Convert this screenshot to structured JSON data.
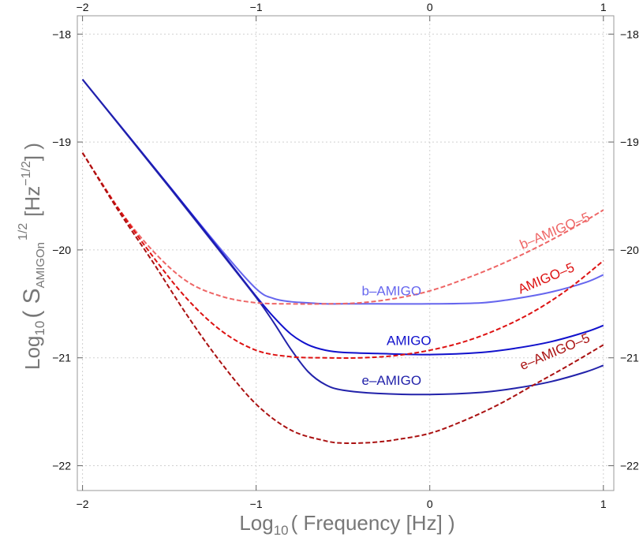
{
  "chart_data": {
    "type": "line",
    "xlabel": {
      "prefix": "Log",
      "sub": "10",
      "text": "( Frequency [Hz] )"
    },
    "ylabel": {
      "prefix": "Log",
      "sub": "10",
      "mid": "( S",
      "sub2": "AMIGOn",
      "sup": "1/2",
      "unit": "[Hz",
      "unitsup": "−1/2",
      "tail": "] )"
    },
    "xlim": [
      -2.03,
      1.06
    ],
    "ylim": [
      -22.23,
      -17.83
    ],
    "x_ticks": [
      -2,
      -1,
      0,
      1
    ],
    "x_tick_labels": [
      "−2",
      "−1",
      "0",
      "1"
    ],
    "y_ticks": [
      -22,
      -21,
      -20,
      -19,
      -18
    ],
    "y_tick_labels": [
      "−22",
      "−21",
      "−20",
      "−19",
      "−18"
    ],
    "grid": true,
    "series": [
      {
        "name": "b–AMIGO",
        "color": "#6666ee",
        "dash": "solid",
        "x": [
          -2,
          -1.5,
          -1.2,
          -1.0,
          -0.9,
          -0.8,
          -0.7,
          -0.6,
          -0.5,
          -0.3,
          0.0,
          0.3,
          0.5,
          0.7,
          0.9,
          1.0
        ],
        "y": [
          -18.42,
          -19.41,
          -20.0,
          -20.36,
          -20.45,
          -20.48,
          -20.49,
          -20.5,
          -20.5,
          -20.5,
          -20.5,
          -20.49,
          -20.45,
          -20.39,
          -20.3,
          -20.23
        ]
      },
      {
        "name": "AMIGO",
        "color": "#1111cc",
        "dash": "solid",
        "x": [
          -2,
          -1.5,
          -1.2,
          -1.0,
          -0.9,
          -0.8,
          -0.7,
          -0.6,
          -0.5,
          -0.3,
          0.0,
          0.3,
          0.5,
          0.7,
          0.9,
          1.0
        ],
        "y": [
          -18.42,
          -19.41,
          -20.02,
          -20.43,
          -20.62,
          -20.78,
          -20.88,
          -20.93,
          -20.95,
          -20.96,
          -20.97,
          -20.95,
          -20.91,
          -20.85,
          -20.76,
          -20.7
        ]
      },
      {
        "name": "e–AMIGO",
        "color": "#2222aa",
        "dash": "solid",
        "x": [
          -2,
          -1.5,
          -1.2,
          -1.0,
          -0.9,
          -0.8,
          -0.7,
          -0.6,
          -0.5,
          -0.3,
          0.0,
          0.3,
          0.5,
          0.7,
          0.9,
          1.0
        ],
        "y": [
          -18.42,
          -19.42,
          -20.03,
          -20.44,
          -20.67,
          -20.92,
          -21.13,
          -21.25,
          -21.3,
          -21.33,
          -21.34,
          -21.32,
          -21.28,
          -21.22,
          -21.13,
          -21.07
        ]
      },
      {
        "name": "b–AMIGO–5",
        "color": "#ee6666",
        "dash": "dashed",
        "x": [
          -2,
          -1.8,
          -1.6,
          -1.4,
          -1.2,
          -1.0,
          -0.8,
          -0.6,
          -0.4,
          -0.2,
          0.0,
          0.2,
          0.4,
          0.6,
          0.8,
          1.0
        ],
        "y": [
          -19.1,
          -19.6,
          -20.0,
          -20.29,
          -20.43,
          -20.49,
          -20.5,
          -20.5,
          -20.49,
          -20.45,
          -20.38,
          -20.27,
          -20.14,
          -19.99,
          -19.82,
          -19.63
        ]
      },
      {
        "name": "AMIGO–5",
        "color": "#dd1111",
        "dash": "dashed",
        "x": [
          -2,
          -1.8,
          -1.6,
          -1.4,
          -1.2,
          -1.0,
          -0.8,
          -0.6,
          -0.4,
          -0.2,
          0.0,
          0.2,
          0.4,
          0.6,
          0.8,
          1.0
        ],
        "y": [
          -19.1,
          -19.6,
          -20.05,
          -20.45,
          -20.75,
          -20.93,
          -20.99,
          -21.0,
          -21.0,
          -20.98,
          -20.93,
          -20.85,
          -20.73,
          -20.57,
          -20.36,
          -20.1
        ]
      },
      {
        "name": "e–AMIGO–5",
        "color": "#aa1111",
        "dash": "dashed",
        "x": [
          -2,
          -1.8,
          -1.6,
          -1.4,
          -1.2,
          -1.0,
          -0.8,
          -0.6,
          -0.5,
          -0.4,
          -0.3,
          -0.2,
          0.0,
          0.2,
          0.4,
          0.6,
          0.8,
          1.0
        ],
        "y": [
          -19.1,
          -19.62,
          -20.1,
          -20.6,
          -21.05,
          -21.43,
          -21.67,
          -21.77,
          -21.79,
          -21.79,
          -21.78,
          -21.76,
          -21.7,
          -21.58,
          -21.43,
          -21.25,
          -21.07,
          -20.88
        ]
      }
    ],
    "annotations": [
      {
        "text": "b–AMIGO",
        "color": "#6666ee",
        "x": -0.22,
        "y": -20.42,
        "rotate": 0
      },
      {
        "text": "AMIGO",
        "color": "#1111cc",
        "x": -0.12,
        "y": -20.88,
        "rotate": 0
      },
      {
        "text": "e–AMIGO",
        "color": "#2222aa",
        "x": -0.22,
        "y": -21.25,
        "rotate": 0
      },
      {
        "text": "b–AMIGO–5",
        "color": "#ee6666",
        "x": 0.73,
        "y": -19.86,
        "rotate": -23
      },
      {
        "text": "AMIGO–5",
        "color": "#dd1111",
        "x": 0.68,
        "y": -20.3,
        "rotate": -23
      },
      {
        "text": "e–AMIGO–5",
        "color": "#aa1111",
        "x": 0.73,
        "y": -20.98,
        "rotate": -23
      }
    ]
  }
}
